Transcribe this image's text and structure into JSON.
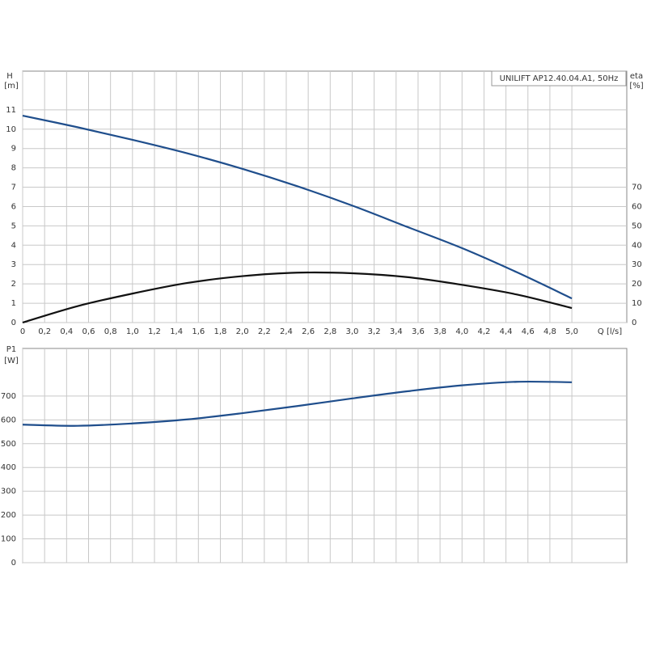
{
  "chart_data": [
    {
      "type": "line",
      "title": "UNILIFT AP12.40.04.A1, 50Hz",
      "y_label": "H",
      "y_unit": "[m]",
      "y2_label": "eta",
      "y2_unit": "[%]",
      "x_label": "Q [l/s]",
      "x": [
        0,
        0.5,
        1.0,
        1.5,
        2.0,
        2.5,
        3.0,
        3.5,
        4.0,
        4.5,
        5.0
      ],
      "series": [
        {
          "name": "H",
          "color": "#1f4e8c",
          "values": [
            10.7,
            10.1,
            9.45,
            8.75,
            7.95,
            7.05,
            6.05,
            4.95,
            3.85,
            2.6,
            1.25
          ]
        },
        {
          "name": "eta",
          "color": "#111111",
          "axis": "y2",
          "values": [
            0,
            8.5,
            15,
            20.5,
            24,
            25.8,
            25.5,
            23.5,
            19.5,
            14.5,
            7.5
          ]
        }
      ],
      "xlim": [
        0,
        5.5
      ],
      "xticks": [
        0,
        {
          "value": 0.2,
          "label": "0,2"
        },
        {
          "value": 0.4,
          "label": "0,4"
        },
        {
          "value": 0.6,
          "label": "0,6"
        },
        {
          "value": 0.8,
          "label": "0,8"
        },
        {
          "value": 1.0,
          "label": "1,0"
        },
        {
          "value": 1.2,
          "label": "1,2"
        },
        {
          "value": 1.4,
          "label": "1,4"
        },
        {
          "value": 1.6,
          "label": "1,6"
        },
        {
          "value": 1.8,
          "label": "1,8"
        },
        {
          "value": 2.0,
          "label": "2,0"
        },
        {
          "value": 2.2,
          "label": "2,2"
        },
        {
          "value": 2.4,
          "label": "2,4"
        },
        {
          "value": 2.6,
          "label": "2,6"
        },
        {
          "value": 2.8,
          "label": "2,8"
        },
        {
          "value": 3.0,
          "label": "3,0"
        },
        {
          "value": 3.2,
          "label": "3,2"
        },
        {
          "value": 3.4,
          "label": "3,4"
        },
        {
          "value": 3.6,
          "label": "3,6"
        },
        {
          "value": 3.8,
          "label": "3,8"
        },
        {
          "value": 4.0,
          "label": "4,0"
        },
        {
          "value": 4.2,
          "label": "4,2"
        },
        {
          "value": 4.4,
          "label": "4,4"
        },
        {
          "value": 4.6,
          "label": "4,6"
        },
        {
          "value": 4.8,
          "label": "4,8"
        },
        {
          "value": 5.0,
          "label": "5,0"
        }
      ],
      "ylim": [
        0,
        13
      ],
      "yticks": [
        0,
        1,
        2,
        3,
        4,
        5,
        6,
        7,
        8,
        9,
        10,
        11
      ],
      "y2lim": [
        0,
        130
      ],
      "y2ticks": [
        0,
        10,
        20,
        30,
        40,
        50,
        60,
        70
      ],
      "grid": true
    },
    {
      "type": "line",
      "y_label": "P1",
      "y_unit": "[W]",
      "x": [
        0,
        0.5,
        1.0,
        1.5,
        2.0,
        2.5,
        3.0,
        3.5,
        4.0,
        4.5,
        5.0
      ],
      "series": [
        {
          "name": "P1",
          "color": "#1f4e8c",
          "values": [
            580,
            575,
            585,
            602,
            628,
            658,
            690,
            720,
            745,
            760,
            758
          ]
        }
      ],
      "xlim": [
        0,
        5.5
      ],
      "ylim": [
        0,
        900
      ],
      "yticks": [
        0,
        100,
        200,
        300,
        400,
        500,
        600,
        700
      ],
      "grid": true
    }
  ]
}
